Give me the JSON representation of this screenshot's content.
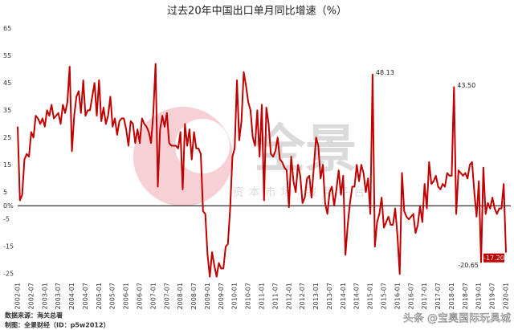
{
  "chart_data": {
    "type": "line",
    "title": "过去20年中国出口单月同比增速（%）",
    "categories": [
      "2002-01",
      null,
      null,
      null,
      null,
      null,
      "2002-07",
      null,
      null,
      null,
      null,
      null,
      "2003-01",
      null,
      null,
      null,
      null,
      null,
      "2003-07",
      null,
      null,
      null,
      null,
      null,
      "2004-01",
      null,
      null,
      null,
      null,
      null,
      "2004-07",
      null,
      null,
      null,
      null,
      null,
      "2005-01",
      null,
      null,
      null,
      null,
      null,
      "2005-07",
      null,
      null,
      null,
      null,
      null,
      "2006-01",
      null,
      null,
      null,
      null,
      null,
      "2006-07",
      null,
      null,
      null,
      null,
      null,
      "2007-01",
      null,
      null,
      null,
      null,
      null,
      "2007-07",
      null,
      null,
      null,
      null,
      null,
      "2008-01",
      null,
      null,
      null,
      null,
      null,
      "2008-07",
      null,
      null,
      null,
      null,
      null,
      "2009-01",
      null,
      null,
      null,
      null,
      null,
      "2009-07",
      null,
      null,
      null,
      null,
      null,
      "2010-01",
      null,
      null,
      null,
      null,
      null,
      "2010-07",
      null,
      null,
      null,
      null,
      null,
      "2011-01",
      null,
      null,
      null,
      null,
      null,
      "2011-07",
      null,
      null,
      null,
      null,
      null,
      "2012-01",
      null,
      null,
      null,
      null,
      null,
      "2012-07",
      null,
      null,
      null,
      null,
      null,
      "2013-01",
      null,
      null,
      null,
      null,
      null,
      "2013-07",
      null,
      null,
      null,
      null,
      null,
      "2014-01",
      null,
      null,
      null,
      null,
      null,
      "2014-07",
      null,
      null,
      null,
      null,
      null,
      "2015-01",
      null,
      null,
      null,
      null,
      null,
      "2015-07",
      null,
      null,
      null,
      null,
      null,
      "2016-01",
      null,
      null,
      null,
      null,
      null,
      "2016-07",
      null,
      null,
      null,
      null,
      null,
      "2017-01",
      null,
      null,
      null,
      null,
      null,
      "2017-07",
      null,
      null,
      null,
      null,
      null,
      "2018-01",
      null,
      null,
      null,
      null,
      null,
      "2018-07",
      null,
      null,
      null,
      null,
      null,
      "2019-01",
      null,
      null,
      null,
      null,
      null,
      "2019-07",
      null,
      null,
      null,
      null,
      null,
      "2020-01"
    ],
    "series": [
      {
        "color": "#c00000",
        "values": [
          29,
          2,
          4,
          17,
          19,
          18,
          27,
          25,
          33,
          32,
          30,
          32,
          29,
          35,
          33,
          37,
          32,
          33,
          34,
          30,
          37,
          34,
          38,
          51,
          20,
          33,
          40,
          42,
          34,
          46,
          33,
          35,
          35,
          40,
          45,
          33,
          46,
          31,
          36,
          30,
          33,
          40,
          29,
          32,
          26,
          31,
          32,
          32,
          28,
          22,
          31,
          30,
          23,
          28,
          23,
          32,
          30,
          29,
          27,
          23,
          34,
          52,
          7,
          28,
          33,
          29,
          34,
          23,
          22,
          22,
          22,
          21,
          27,
          6,
          30,
          22,
          28,
          17,
          27,
          21,
          21,
          19,
          -2,
          -3,
          -18,
          -26,
          -17,
          -22,
          -26,
          -21,
          -23,
          -23,
          -15,
          -14,
          -1,
          18,
          21,
          46,
          24,
          31,
          49,
          44,
          38,
          35,
          25,
          22,
          35,
          18,
          37,
          2,
          36,
          30,
          19,
          18,
          20,
          25,
          17,
          16,
          14,
          13,
          -0.5,
          18,
          9,
          5,
          15,
          11,
          1,
          3,
          10,
          11,
          3,
          14,
          25,
          22,
          10,
          15,
          1,
          -3,
          5,
          7,
          0,
          6,
          13,
          4,
          11,
          -18,
          -7,
          1,
          7,
          7,
          15,
          9,
          15,
          12,
          5,
          10,
          -3,
          48.13,
          -15,
          -6,
          -3,
          3,
          -8,
          -6,
          -4,
          -7,
          -7,
          -1,
          -11,
          -25,
          12,
          -2,
          -4,
          -5,
          -4,
          -3,
          -10,
          -7,
          0,
          -6,
          8,
          -1,
          16,
          8,
          9,
          11,
          7,
          6,
          8,
          7,
          12,
          11,
          11,
          43.5,
          -3,
          13,
          12,
          11,
          12,
          10,
          15,
          16,
          5,
          -4,
          9,
          -20.65,
          14,
          -3,
          1,
          -1,
          3,
          -1,
          -3,
          -1,
          -1,
          8,
          -17.2
        ],
        "value_labels": [
          null,
          null,
          null,
          null,
          null,
          null,
          null,
          null,
          null,
          null,
          null,
          null,
          null,
          null,
          null,
          null,
          null,
          null,
          null,
          null,
          null,
          null,
          null,
          null,
          null,
          null,
          null,
          null,
          null,
          null,
          null,
          null,
          null,
          null,
          null,
          null,
          null,
          null,
          null,
          null,
          null,
          null,
          null,
          null,
          null,
          null,
          null,
          null,
          null,
          null,
          null,
          null,
          null,
          null,
          null,
          null,
          null,
          null,
          null,
          null,
          null,
          null,
          null,
          null,
          null,
          null,
          null,
          null,
          null,
          null,
          null,
          null,
          null,
          null,
          null,
          null,
          null,
          null,
          null,
          null,
          null,
          null,
          null,
          null,
          null,
          null,
          null,
          null,
          null,
          null,
          null,
          null,
          null,
          null,
          null,
          null,
          null,
          null,
          null,
          null,
          null,
          null,
          null,
          null,
          null,
          null,
          null,
          null,
          null,
          null,
          null,
          null,
          null,
          null,
          null,
          null,
          null,
          null,
          null,
          null,
          null,
          null,
          null,
          null,
          null,
          null,
          null,
          null,
          null,
          null,
          null,
          null,
          null,
          null,
          null,
          null,
          null,
          null,
          null,
          null,
          null,
          null,
          null,
          null,
          null,
          null,
          null,
          null,
          null,
          null,
          null,
          null,
          null,
          null,
          null,
          null,
          null,
          "48.13",
          null,
          null,
          null,
          null,
          null,
          null,
          null,
          null,
          null,
          null,
          null,
          null,
          null,
          null,
          null,
          null,
          null,
          null,
          null,
          null,
          null,
          null,
          null,
          null,
          null,
          null,
          null,
          null,
          null,
          null,
          null,
          null,
          null,
          null,
          null,
          "43.50",
          null,
          null,
          null,
          null,
          null,
          null,
          null,
          null,
          null,
          null,
          null,
          "-20.65",
          null,
          null,
          null,
          null,
          null,
          null,
          null,
          null,
          null,
          null,
          "-17.20"
        ]
      }
    ],
    "ylim": [
      -27,
      66
    ],
    "yticks": [
      65,
      55,
      45,
      35,
      25,
      15,
      5,
      {
        "value": 0,
        "label": "0%"
      },
      -5,
      -15,
      -25
    ]
  },
  "source": "数据来源：海关总署",
  "credit": "制图：全景财经（ID：p5w2012）",
  "watermark": {
    "logo": "全景",
    "tagline": "资本市场 服务平台",
    "account": "头条 @宝奥国际玩具城"
  }
}
